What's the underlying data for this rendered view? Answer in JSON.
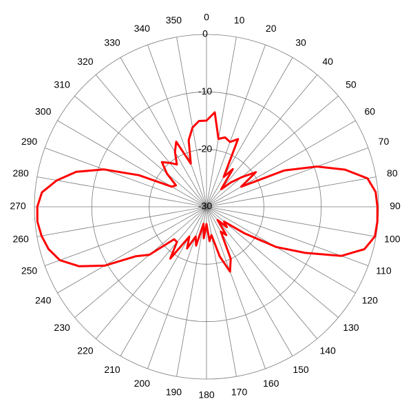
{
  "chart_data": {
    "type": "polar",
    "color": "#ff0000",
    "x": [
      0,
      5,
      10,
      15,
      20,
      25,
      30,
      35,
      40,
      45,
      50,
      55,
      60,
      65,
      70,
      75,
      80,
      85,
      90,
      95,
      100,
      105,
      110,
      115,
      120,
      125,
      130,
      135,
      140,
      145,
      150,
      155,
      160,
      165,
      170,
      175,
      180,
      185,
      190,
      195,
      200,
      205,
      210,
      215,
      220,
      225,
      230,
      235,
      240,
      245,
      250,
      255,
      260,
      265,
      270,
      275,
      280,
      285,
      290,
      295,
      300,
      305,
      310,
      315,
      320,
      325,
      330,
      335,
      340,
      345,
      350,
      355
    ],
    "values": [
      -15,
      -13.5,
      -18,
      -17.5,
      -18,
      -17,
      -24,
      -22,
      -26,
      -24,
      -22,
      -19.5,
      -23,
      -15,
      -9.5,
      -5,
      -1.5,
      -0.4,
      -0.2,
      -0.1,
      -0.2,
      -1.5,
      -5,
      -11,
      -16,
      -22,
      -26,
      -25,
      -27,
      -24,
      -25,
      -20,
      -18,
      -21,
      -25,
      -24,
      -27,
      -24.5,
      -27,
      -23,
      -24.5,
      -22,
      -24,
      -19,
      -22,
      -22,
      -17,
      -15,
      -9.5,
      -5.5,
      -2.8,
      -1.5,
      -0.8,
      -0.4,
      -0.5,
      -1.2,
      -3.5,
      -6.5,
      -11,
      -17,
      -23,
      -23.5,
      -21,
      -19,
      -20,
      -21,
      -19,
      -17.5,
      -22,
      -18,
      -16,
      -15
    ],
    "xticks": [
      0,
      10,
      20,
      30,
      40,
      50,
      60,
      70,
      80,
      90,
      100,
      110,
      120,
      130,
      140,
      150,
      160,
      170,
      180,
      190,
      200,
      210,
      220,
      230,
      240,
      250,
      260,
      270,
      280,
      290,
      300,
      310,
      320,
      330,
      340,
      350
    ],
    "xlim": [
      0,
      360
    ],
    "ylim": [
      -30,
      0
    ],
    "yticks": [
      0,
      -10,
      -20,
      -30
    ],
    "grid": true
  }
}
